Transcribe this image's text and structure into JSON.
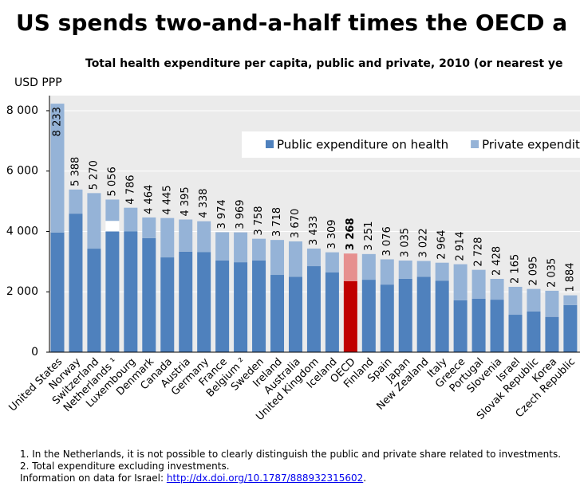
{
  "chart_data": {
    "type": "bar",
    "stacked": true,
    "title": "US spends two-and-a-half times the OECD a",
    "subtitle": "Total health expenditure per capita, public and private, 2010 (or nearest ye",
    "y_label": "USD PPP",
    "categories": [
      "United States",
      "Norway",
      "Switzerland",
      "Netherlands ¹",
      "Luxembourg",
      "Denmark",
      "Canada",
      "Austria",
      "Germany",
      "France",
      "Belgium ²",
      "Sweden",
      "Ireland",
      "Australia",
      "United Kingdom",
      "Iceland",
      "OECD",
      "Finland",
      "Spain",
      "Japan",
      "New Zealand",
      "Italy",
      "Greece",
      "Portugal",
      "Slovenia",
      "Israel",
      "Slovak Republic",
      "Korea",
      "Czech Republic"
    ],
    "series": [
      {
        "name": "Public expenditure on health",
        "color": "#4f81bd",
        "highlight_color": "#c00000",
        "values": [
          3960,
          4590,
          3430,
          4000,
          4000,
          3780,
          3140,
          3330,
          3320,
          3040,
          2980,
          3040,
          2560,
          2500,
          2850,
          2640,
          2350,
          2400,
          2240,
          2430,
          2500,
          2370,
          1720,
          1770,
          1740,
          1240,
          1350,
          1170,
          1560
        ]
      },
      {
        "color": "#ffffff",
        "values": [
          null,
          null,
          null,
          350,
          null,
          null,
          null,
          null,
          null,
          null,
          null,
          null,
          null,
          null,
          null,
          null,
          null,
          null,
          null,
          null,
          null,
          null,
          null,
          null,
          null,
          null,
          null,
          null,
          null
        ]
      },
      {
        "name": "Private expendit",
        "color": "#95b3d7",
        "highlight_color": "#e6908f",
        "values": [
          4273,
          798,
          1840,
          706,
          786,
          684,
          1305,
          1065,
          1018,
          934,
          989,
          718,
          1158,
          1170,
          583,
          669,
          918,
          851,
          836,
          605,
          522,
          594,
          1194,
          958,
          688,
          925,
          745,
          865,
          324
        ]
      }
    ],
    "highlight": "OECD",
    "totals": [
      8233,
      5388,
      5270,
      5056,
      4786,
      4464,
      4445,
      4395,
      4338,
      3974,
      3969,
      3758,
      3718,
      3670,
      3433,
      3309,
      3268,
      3251,
      3076,
      3035,
      3022,
      2964,
      2914,
      2728,
      2428,
      2165,
      2095,
      2035,
      1884
    ],
    "total_labels": [
      "8 233",
      "5 388",
      "5 270",
      "5 056",
      "4 786",
      "4 464",
      "4 445",
      "4 395",
      "4 338",
      "3 974",
      "3 969",
      "3 758",
      "3 718",
      "3 670",
      "3 433",
      "3 309",
      "3 268",
      "3 251",
      "3 076",
      "3 035",
      "3 022",
      "2 964",
      "2 914",
      "2 728",
      "2 428",
      "2 165",
      "2 095",
      "2 035",
      "1 884"
    ],
    "ylim": [
      0,
      8500
    ],
    "yticks": [
      0,
      {
        "value": 2000,
        "label": "2 000"
      },
      {
        "value": 4000,
        "label": "4 000"
      },
      {
        "value": 6000,
        "label": "6 000"
      },
      {
        "value": 8000,
        "label": "8 000"
      }
    ],
    "grid": true,
    "legend": "top-right"
  },
  "notes": [
    "1.  In the Netherlands, it is not possible to clearly distinguish the public and private share related to investments.",
    "2.  Total expenditure excluding investments."
  ],
  "source": {
    "text": "Information on data for Israel: ",
    "link": "http://dx.doi.org/10.1787/888932315602",
    "end": "."
  }
}
